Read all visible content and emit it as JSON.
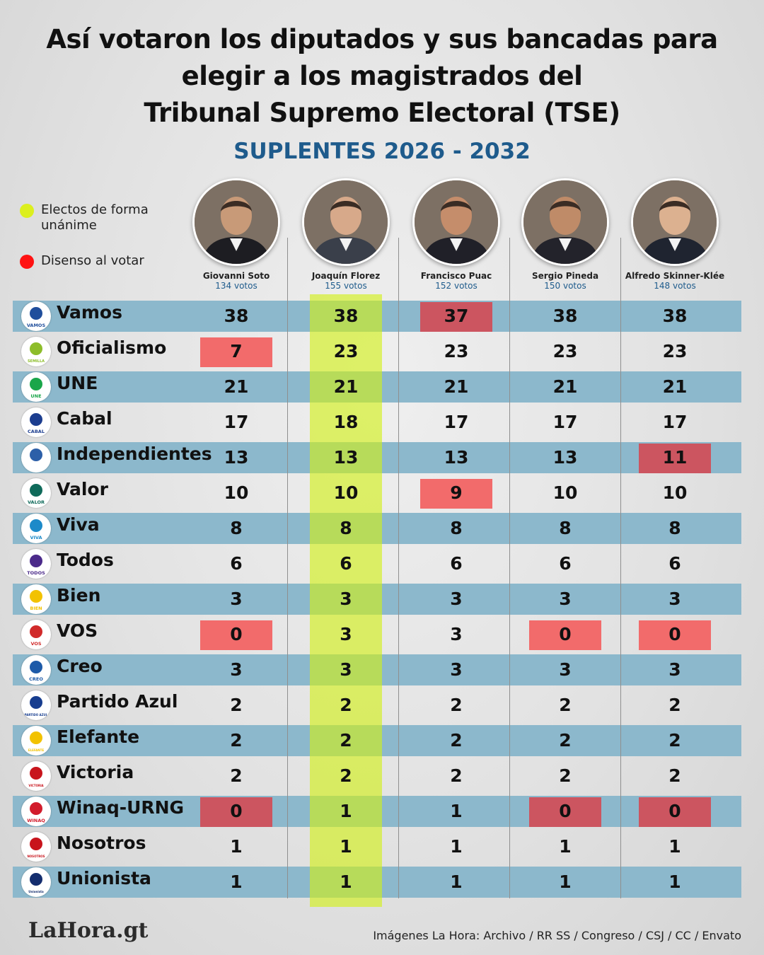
{
  "title_lines": [
    "Así votaron los diputados y sus bancadas para",
    "elegir a los magistrados del",
    "Tribunal Supremo Electoral (TSE)"
  ],
  "subtitle": "SUPLENTES 2026 - 2032",
  "legend": {
    "unanimous": "Electos de forma unánime",
    "dissent": "Disenso al votar"
  },
  "colors": {
    "unanimous": "#dcef1e",
    "dissent": "#ff1212",
    "stripe": "#8cb8cc",
    "subtitle": "#1e5b8c"
  },
  "candidates": [
    {
      "name": "Giovanni Soto",
      "votes": "134 votos"
    },
    {
      "name": "Joaquín Florez",
      "votes": "155 votos"
    },
    {
      "name": "Francisco Puac",
      "votes": "152 votos"
    },
    {
      "name": "Sergio Pineda",
      "votes": "150 votos"
    },
    {
      "name": "Alfredo Skinner-Klée",
      "votes": "148 votos"
    }
  ],
  "chart_data": {
    "type": "table",
    "title": "Así votaron los diputados y sus bancadas para elegir a los magistrados del Tribunal Supremo Electoral (TSE)",
    "subtitle": "SUPLENTES 2026 - 2032",
    "columns": [
      "Giovanni Soto",
      "Joaquín Florez",
      "Francisco Puac",
      "Sergio Pineda",
      "Alfredo Skinner-Klée"
    ],
    "column_totals": [
      134,
      155,
      152,
      150,
      148
    ],
    "unanimous_column": "Joaquín Florez",
    "rows": [
      {
        "party": "Vamos",
        "logo_text": "VAMOS",
        "logo": "vamos-logo",
        "values": [
          38,
          38,
          37,
          38,
          38
        ],
        "dissent": [
          false,
          false,
          true,
          false,
          false
        ]
      },
      {
        "party": "Oficialismo",
        "logo_text": "SEMILLA",
        "logo": "semilla-logo",
        "values": [
          7,
          23,
          23,
          23,
          23
        ],
        "dissent": [
          true,
          false,
          false,
          false,
          false
        ]
      },
      {
        "party": "UNE",
        "logo_text": "UNE",
        "logo": "une-logo",
        "values": [
          21,
          21,
          21,
          21,
          21
        ],
        "dissent": [
          false,
          false,
          false,
          false,
          false
        ]
      },
      {
        "party": "Cabal",
        "logo_text": "CABAL",
        "logo": "cabal-logo",
        "values": [
          17,
          18,
          17,
          17,
          17
        ],
        "dissent": [
          false,
          false,
          false,
          false,
          false
        ]
      },
      {
        "party": "Independientes",
        "logo_text": "",
        "logo": "independientes-logo",
        "values": [
          13,
          13,
          13,
          13,
          11
        ],
        "dissent": [
          false,
          false,
          false,
          false,
          true
        ]
      },
      {
        "party": "Valor",
        "logo_text": "VALOR",
        "logo": "valor-logo",
        "values": [
          10,
          10,
          9,
          10,
          10
        ],
        "dissent": [
          false,
          false,
          true,
          false,
          false
        ]
      },
      {
        "party": "Viva",
        "logo_text": "VIVA",
        "logo": "viva-logo",
        "values": [
          8,
          8,
          8,
          8,
          8
        ],
        "dissent": [
          false,
          false,
          false,
          false,
          false
        ]
      },
      {
        "party": "Todos",
        "logo_text": "TODOS",
        "logo": "todos-logo",
        "values": [
          6,
          6,
          6,
          6,
          6
        ],
        "dissent": [
          false,
          false,
          false,
          false,
          false
        ]
      },
      {
        "party": "Bien",
        "logo_text": "BIEN",
        "logo": "bien-logo",
        "values": [
          3,
          3,
          3,
          3,
          3
        ],
        "dissent": [
          false,
          false,
          false,
          false,
          false
        ]
      },
      {
        "party": "VOS",
        "logo_text": "VOS",
        "logo": "vos-logo",
        "values": [
          0,
          3,
          3,
          0,
          0
        ],
        "dissent": [
          true,
          false,
          false,
          true,
          true
        ]
      },
      {
        "party": "Creo",
        "logo_text": "CREO",
        "logo": "creo-logo",
        "values": [
          3,
          3,
          3,
          3,
          3
        ],
        "dissent": [
          false,
          false,
          false,
          false,
          false
        ]
      },
      {
        "party": "Partido Azul",
        "logo_text": "PARTIDO AZUL",
        "logo": "partido-azul-logo",
        "values": [
          2,
          2,
          2,
          2,
          2
        ],
        "dissent": [
          false,
          false,
          false,
          false,
          false
        ]
      },
      {
        "party": "Elefante",
        "logo_text": "ELEFANTE",
        "logo": "elefante-logo",
        "values": [
          2,
          2,
          2,
          2,
          2
        ],
        "dissent": [
          false,
          false,
          false,
          false,
          false
        ]
      },
      {
        "party": "Victoria",
        "logo_text": "VICTORIA",
        "logo": "victoria-logo",
        "values": [
          2,
          2,
          2,
          2,
          2
        ],
        "dissent": [
          false,
          false,
          false,
          false,
          false
        ]
      },
      {
        "party": "Winaq-URNG",
        "logo_text": "WINAQ",
        "logo": "winaq-logo",
        "values": [
          0,
          1,
          1,
          0,
          0
        ],
        "dissent": [
          true,
          false,
          false,
          true,
          true
        ]
      },
      {
        "party": "Nosotros",
        "logo_text": "NOSOTROS",
        "logo": "nosotros-logo",
        "values": [
          1,
          1,
          1,
          1,
          1
        ],
        "dissent": [
          false,
          false,
          false,
          false,
          false
        ]
      },
      {
        "party": "Unionista",
        "logo_text": "Unionista",
        "logo": "unionista-logo",
        "values": [
          1,
          1,
          1,
          1,
          1
        ],
        "dissent": [
          false,
          false,
          false,
          false,
          false
        ]
      }
    ]
  },
  "footer": {
    "brand": "LaHora.gt",
    "credits": "Imágenes La Hora:  Archivo / RR SS / Congreso / CSJ / CC / Envato"
  }
}
